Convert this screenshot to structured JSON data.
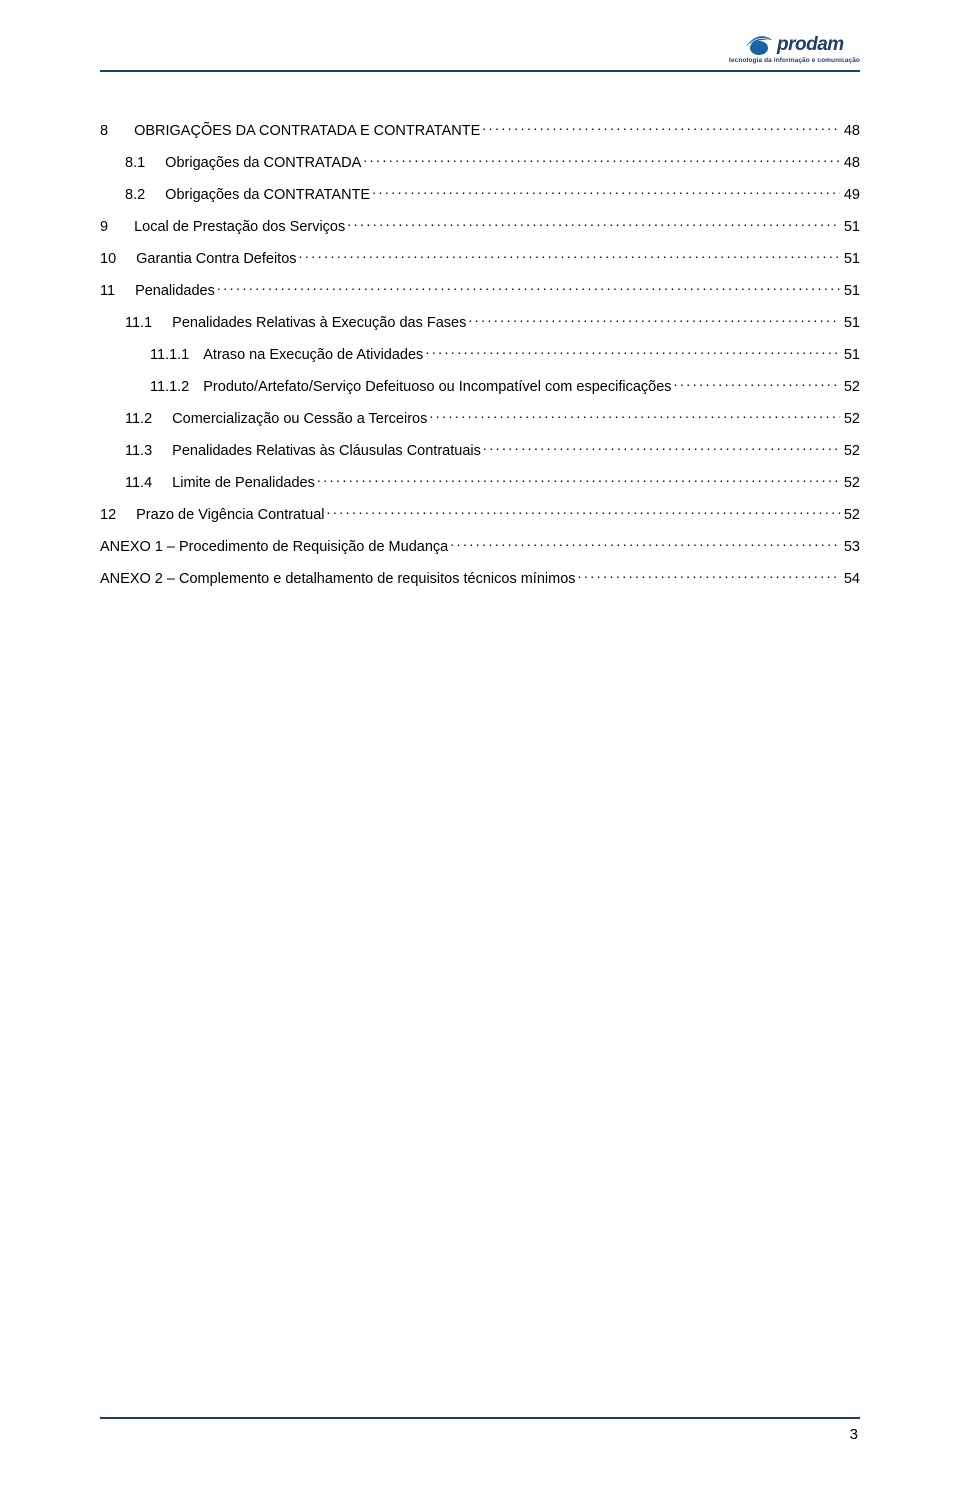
{
  "colors": {
    "text": "#000000",
    "rule": "#1f3f6b",
    "logo_blue": "#1664a6",
    "logo_text": "#1f3f6b",
    "footer_rule": "#1f3f6b",
    "tagline": "#1f3f6b",
    "leader": "#000000"
  },
  "logo": {
    "brand": "prodam",
    "tagline": "tecnologia da informação e comunicação"
  },
  "toc": [
    {
      "level": 0,
      "num": "8",
      "title": "OBRIGAÇÕES DA CONTRATADA E CONTRATANTE",
      "page": "48"
    },
    {
      "level": 1,
      "num": "8.1",
      "title": "Obrigações da CONTRATADA",
      "page": "48"
    },
    {
      "level": 1,
      "num": "8.2",
      "title": "Obrigações da CONTRATANTE",
      "page": "49"
    },
    {
      "level": 0,
      "num": "9",
      "title": "Local de Prestação dos Serviços",
      "page": "51"
    },
    {
      "level": "0b",
      "num": "10",
      "title": "Garantia Contra Defeitos",
      "page": "51"
    },
    {
      "level": "0b",
      "num": "11",
      "title": "Penalidades",
      "page": "51"
    },
    {
      "level": 1,
      "num": "11.1",
      "title": "Penalidades Relativas à Execução das Fases",
      "page": "51"
    },
    {
      "level": 2,
      "num": "11.1.1",
      "title": "Atraso na Execução de Atividades",
      "page": "51"
    },
    {
      "level": 2,
      "num": "11.1.2",
      "title": "Produto/Artefato/Serviço Defeituoso ou Incompatível com especificações",
      "page": "52"
    },
    {
      "level": 1,
      "num": "11.2",
      "title": "Comercialização ou Cessão a Terceiros",
      "page": "52"
    },
    {
      "level": 1,
      "num": "11.3",
      "title": "Penalidades Relativas às Cláusulas Contratuais",
      "page": "52"
    },
    {
      "level": 1,
      "num": "11.4",
      "title": "Limite de Penalidades",
      "page": "52"
    },
    {
      "level": "0b",
      "num": "12",
      "title": "Prazo de Vigência Contratual",
      "page": "52"
    },
    {
      "level": "anexo",
      "num": "",
      "title": "ANEXO 1 – Procedimento de Requisição de Mudança",
      "page": "53"
    },
    {
      "level": "anexo",
      "num": "",
      "title": "ANEXO 2 – Complemento e detalhamento de requisitos técnicos mínimos",
      "page": "54"
    }
  ],
  "page_number": "3"
}
